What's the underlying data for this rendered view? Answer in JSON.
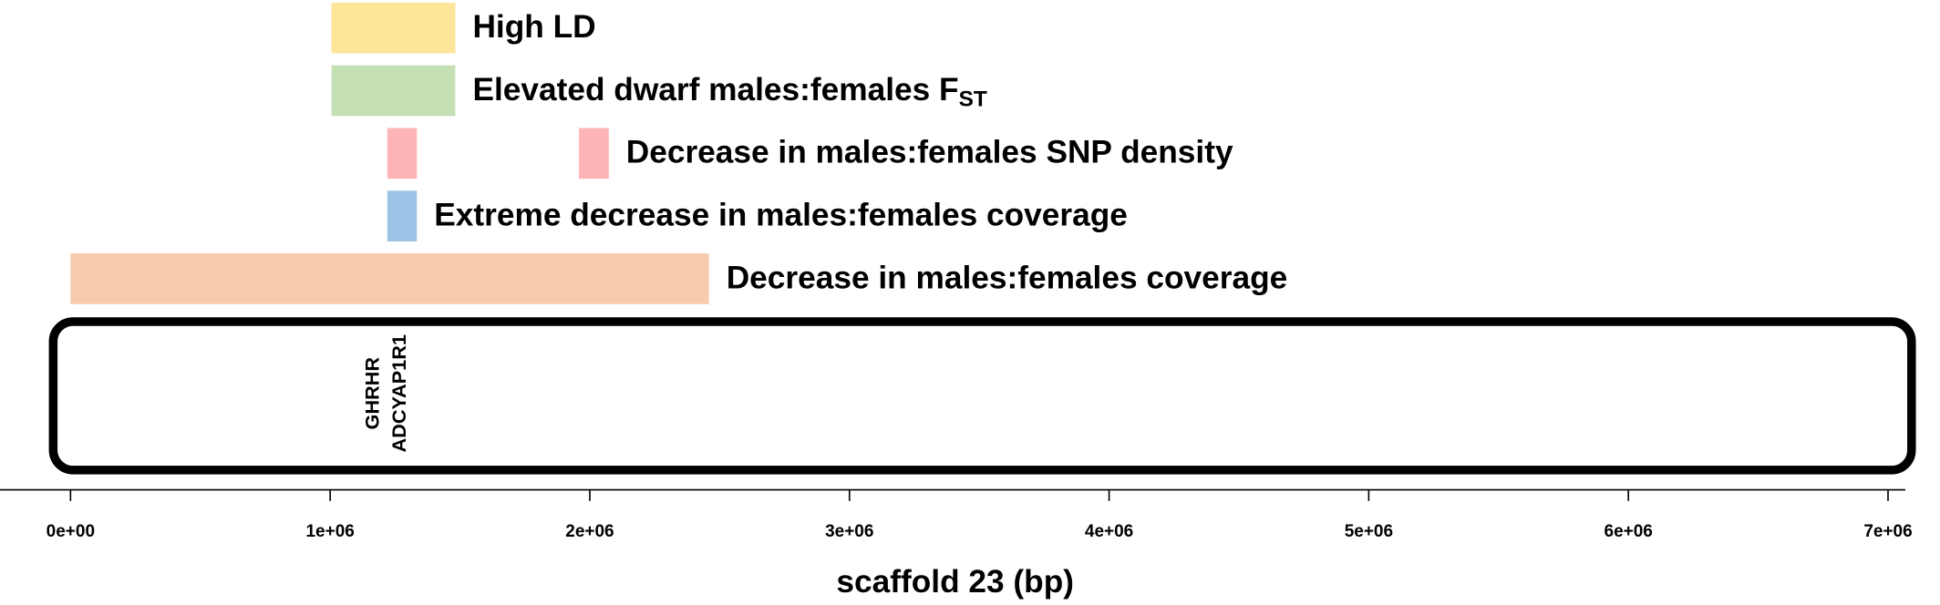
{
  "chart_data": {
    "type": "genome-track",
    "x_label": "scaffold 23 (bp)",
    "xlim": [
      -271600,
      7066700
    ],
    "xticks": [
      {
        "value": 0,
        "label": "0e+00"
      },
      {
        "value": 1000000,
        "label": "1e+06"
      },
      {
        "value": 2000000,
        "label": "2e+06"
      },
      {
        "value": 3000000,
        "label": "3e+06"
      },
      {
        "value": 4000000,
        "label": "4e+06"
      },
      {
        "value": 5000000,
        "label": "5e+06"
      },
      {
        "value": 6000000,
        "label": "6e+06"
      },
      {
        "value": 7000000,
        "label": "7e+06"
      }
    ],
    "tracks": [
      {
        "name": "High LD",
        "color": "#fde59a",
        "intervals": [
          [
            1005000,
            1482000
          ]
        ]
      },
      {
        "name": "Elevated dwarf males:females F",
        "name_subscript": "ST",
        "color": "#c5e0b4",
        "intervals": [
          [
            1005000,
            1482000
          ]
        ]
      },
      {
        "name": "Decrease in males:females SNP density",
        "color": "#ffb5b5",
        "intervals": [
          [
            1220000,
            1334000
          ],
          [
            1958000,
            2073000
          ]
        ]
      },
      {
        "name": "Extreme decrease in males:females coverage",
        "color": "#9dc3e6",
        "intervals": [
          [
            1220000,
            1334000
          ]
        ]
      },
      {
        "name": "Decrease in males:females coverage",
        "color": "#f8cbad",
        "intervals": [
          [
            0,
            2459000
          ]
        ]
      }
    ],
    "genes": [
      {
        "name": "GHRHR",
        "position": 1167000
      },
      {
        "name": "ADCYAP1R1",
        "position": 1270000
      }
    ]
  }
}
